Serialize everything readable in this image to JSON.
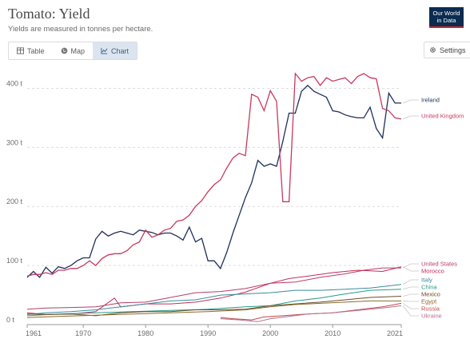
{
  "header": {
    "title": "Tomato: Yield",
    "subtitle": "Yields are measured in tonnes per hectare.",
    "logo_line1": "Our World",
    "logo_line2": "in Data"
  },
  "tabs": [
    {
      "label": "Table",
      "icon": "table-icon"
    },
    {
      "label": "Map",
      "icon": "globe-icon"
    },
    {
      "label": "Chart",
      "icon": "line-chart-icon"
    }
  ],
  "settings_label": "Settings",
  "colors": {
    "ireland": "#1f2f5c",
    "uk": "#c9395f",
    "usa": "#b73d68",
    "morocco": "#c42d56",
    "italy": "#3b8a9e",
    "china": "#2a9a8a",
    "mexico": "#6b4c2a",
    "egypt": "#8a6b2f",
    "russia": "#c24a4a",
    "ukraine": "#b07090"
  },
  "chart_data": {
    "type": "line",
    "xlim": [
      1961,
      2021
    ],
    "ylim": [
      0,
      425
    ],
    "y_ticks": [
      0,
      100,
      200,
      300,
      400
    ],
    "y_tick_labels": [
      "0 t",
      "100 t",
      "200 t",
      "300 t",
      "400 t"
    ],
    "x_ticks": [
      1961,
      1970,
      1980,
      1990,
      2000,
      2010,
      2021
    ],
    "x_tick_labels": [
      "1961",
      "1970",
      "1980",
      "1990",
      "2000",
      "2010",
      "2021"
    ],
    "grid": "horizontal-dashed",
    "series": [
      {
        "name": "Ireland",
        "color_key": "ireland",
        "points": [
          [
            1961,
            80
          ],
          [
            1962,
            90
          ],
          [
            1963,
            80
          ],
          [
            1964,
            97
          ],
          [
            1965,
            87
          ],
          [
            1966,
            98
          ],
          [
            1967,
            95
          ],
          [
            1968,
            100
          ],
          [
            1969,
            108
          ],
          [
            1970,
            113
          ],
          [
            1971,
            113
          ],
          [
            1972,
            145
          ],
          [
            1973,
            158
          ],
          [
            1974,
            150
          ],
          [
            1975,
            155
          ],
          [
            1976,
            158
          ],
          [
            1977,
            155
          ],
          [
            1978,
            152
          ],
          [
            1979,
            160
          ],
          [
            1980,
            158
          ],
          [
            1981,
            156
          ],
          [
            1982,
            152
          ],
          [
            1983,
            155
          ],
          [
            1984,
            155
          ],
          [
            1985,
            150
          ],
          [
            1986,
            143
          ],
          [
            1987,
            165
          ],
          [
            1988,
            140
          ],
          [
            1989,
            146
          ],
          [
            1990,
            108
          ],
          [
            1991,
            108
          ],
          [
            1992,
            95
          ],
          [
            1993,
            122
          ],
          [
            1994,
            155
          ],
          [
            1995,
            185
          ],
          [
            1996,
            215
          ],
          [
            1997,
            240
          ],
          [
            1998,
            278
          ],
          [
            1999,
            268
          ],
          [
            2000,
            272
          ],
          [
            2001,
            268
          ],
          [
            2002,
            310
          ],
          [
            2003,
            358
          ],
          [
            2004,
            358
          ],
          [
            2005,
            395
          ],
          [
            2006,
            405
          ],
          [
            2007,
            395
          ],
          [
            2008,
            390
          ],
          [
            2009,
            385
          ],
          [
            2010,
            362
          ],
          [
            2011,
            360
          ],
          [
            2012,
            355
          ],
          [
            2013,
            352
          ],
          [
            2014,
            350
          ],
          [
            2015,
            350
          ],
          [
            2016,
            368
          ],
          [
            2017,
            332
          ],
          [
            2018,
            316
          ],
          [
            2019,
            392
          ],
          [
            2020,
            375
          ],
          [
            2021,
            375
          ]
        ]
      },
      {
        "name": "United Kingdom",
        "color_key": "uk",
        "points": [
          [
            1961,
            82
          ],
          [
            1962,
            85
          ],
          [
            1963,
            85
          ],
          [
            1964,
            88
          ],
          [
            1965,
            85
          ],
          [
            1966,
            92
          ],
          [
            1967,
            92
          ],
          [
            1968,
            95
          ],
          [
            1969,
            95
          ],
          [
            1970,
            100
          ],
          [
            1971,
            108
          ],
          [
            1972,
            100
          ],
          [
            1973,
            112
          ],
          [
            1974,
            118
          ],
          [
            1975,
            120
          ],
          [
            1976,
            120
          ],
          [
            1977,
            125
          ],
          [
            1978,
            135
          ],
          [
            1979,
            140
          ],
          [
            1980,
            160
          ],
          [
            1981,
            148
          ],
          [
            1982,
            152
          ],
          [
            1983,
            160
          ],
          [
            1984,
            163
          ],
          [
            1985,
            175
          ],
          [
            1986,
            177
          ],
          [
            1987,
            185
          ],
          [
            1988,
            200
          ],
          [
            1989,
            210
          ],
          [
            1990,
            225
          ],
          [
            1991,
            237
          ],
          [
            1992,
            245
          ],
          [
            1993,
            265
          ],
          [
            1994,
            282
          ],
          [
            1995,
            290
          ],
          [
            1996,
            286
          ],
          [
            1997,
            390
          ],
          [
            1998,
            385
          ],
          [
            1999,
            362
          ],
          [
            2000,
            396
          ],
          [
            2001,
            378
          ],
          [
            2002,
            208
          ],
          [
            2003,
            208
          ],
          [
            2004,
            425
          ],
          [
            2005,
            412
          ],
          [
            2006,
            418
          ],
          [
            2007,
            420
          ],
          [
            2008,
            405
          ],
          [
            2009,
            418
          ],
          [
            2010,
            412
          ],
          [
            2011,
            415
          ],
          [
            2012,
            418
          ],
          [
            2013,
            408
          ],
          [
            2014,
            420
          ],
          [
            2015,
            425
          ],
          [
            2016,
            418
          ],
          [
            2017,
            416
          ],
          [
            2018,
            366
          ],
          [
            2019,
            362
          ],
          [
            2020,
            350
          ],
          [
            2021,
            348
          ]
        ]
      },
      {
        "name": "United States",
        "color_key": "usa",
        "points": [
          [
            1961,
            26
          ],
          [
            1964,
            28
          ],
          [
            1968,
            29
          ],
          [
            1972,
            30
          ],
          [
            1976,
            37
          ],
          [
            1980,
            38
          ],
          [
            1984,
            46
          ],
          [
            1988,
            54
          ],
          [
            1992,
            56
          ],
          [
            1996,
            61
          ],
          [
            2000,
            70
          ],
          [
            2004,
            72
          ],
          [
            2008,
            80
          ],
          [
            2012,
            86
          ],
          [
            2015,
            92
          ],
          [
            2018,
            96
          ],
          [
            2021,
            96
          ]
        ]
      },
      {
        "name": "Morocco",
        "color_key": "morocco",
        "points": [
          [
            1961,
            20
          ],
          [
            1964,
            17
          ],
          [
            1968,
            18
          ],
          [
            1972,
            22
          ],
          [
            1975,
            45
          ],
          [
            1976,
            30
          ],
          [
            1980,
            35
          ],
          [
            1984,
            35
          ],
          [
            1988,
            38
          ],
          [
            1992,
            45
          ],
          [
            1996,
            55
          ],
          [
            2000,
            70
          ],
          [
            2003,
            78
          ],
          [
            2006,
            82
          ],
          [
            2010,
            88
          ],
          [
            2014,
            92
          ],
          [
            2018,
            90
          ],
          [
            2021,
            98
          ]
        ]
      },
      {
        "name": "Italy",
        "color_key": "italy",
        "points": [
          [
            1961,
            17
          ],
          [
            1964,
            20
          ],
          [
            1968,
            22
          ],
          [
            1972,
            25
          ],
          [
            1976,
            30
          ],
          [
            1980,
            35
          ],
          [
            1984,
            40
          ],
          [
            1988,
            42
          ],
          [
            1992,
            50
          ],
          [
            1996,
            52
          ],
          [
            2000,
            54
          ],
          [
            2004,
            58
          ],
          [
            2008,
            58
          ],
          [
            2012,
            60
          ],
          [
            2016,
            62
          ],
          [
            2021,
            68
          ]
        ]
      },
      {
        "name": "China",
        "color_key": "china",
        "points": [
          [
            1961,
            15
          ],
          [
            1966,
            18
          ],
          [
            1972,
            20
          ],
          [
            1978,
            22
          ],
          [
            1984,
            24
          ],
          [
            1990,
            26
          ],
          [
            1996,
            30
          ],
          [
            2000,
            32
          ],
          [
            2004,
            40
          ],
          [
            2008,
            45
          ],
          [
            2012,
            52
          ],
          [
            2016,
            58
          ],
          [
            2021,
            60
          ]
        ]
      },
      {
        "name": "Mexico",
        "color_key": "mexico",
        "points": [
          [
            1961,
            18
          ],
          [
            1964,
            17
          ],
          [
            1968,
            18
          ],
          [
            1972,
            15
          ],
          [
            1976,
            20
          ],
          [
            1980,
            22
          ],
          [
            1984,
            22
          ],
          [
            1988,
            25
          ],
          [
            1992,
            25
          ],
          [
            1996,
            26
          ],
          [
            2000,
            32
          ],
          [
            2004,
            35
          ],
          [
            2008,
            38
          ],
          [
            2012,
            42
          ],
          [
            2016,
            46
          ],
          [
            2021,
            48
          ]
        ]
      },
      {
        "name": "Egypt",
        "color_key": "egypt",
        "points": [
          [
            1961,
            12
          ],
          [
            1966,
            14
          ],
          [
            1972,
            16
          ],
          [
            1978,
            18
          ],
          [
            1984,
            20
          ],
          [
            1990,
            22
          ],
          [
            1996,
            25
          ],
          [
            2000,
            30
          ],
          [
            2004,
            34
          ],
          [
            2008,
            36
          ],
          [
            2012,
            38
          ],
          [
            2016,
            40
          ],
          [
            2021,
            40
          ]
        ]
      },
      {
        "name": "Russia",
        "color_key": "russia",
        "points": [
          [
            1992,
            12
          ],
          [
            1994,
            10
          ],
          [
            1997,
            8
          ],
          [
            1999,
            13
          ],
          [
            2002,
            15
          ],
          [
            2006,
            18
          ],
          [
            2010,
            20
          ],
          [
            2014,
            25
          ],
          [
            2018,
            30
          ],
          [
            2021,
            36
          ]
        ]
      },
      {
        "name": "Ukraine",
        "color_key": "ukraine",
        "points": [
          [
            1992,
            10
          ],
          [
            1995,
            8
          ],
          [
            1998,
            5
          ],
          [
            2000,
            10
          ],
          [
            2003,
            14
          ],
          [
            2006,
            18
          ],
          [
            2010,
            20
          ],
          [
            2014,
            24
          ],
          [
            2018,
            28
          ],
          [
            2021,
            32
          ]
        ]
      }
    ]
  }
}
